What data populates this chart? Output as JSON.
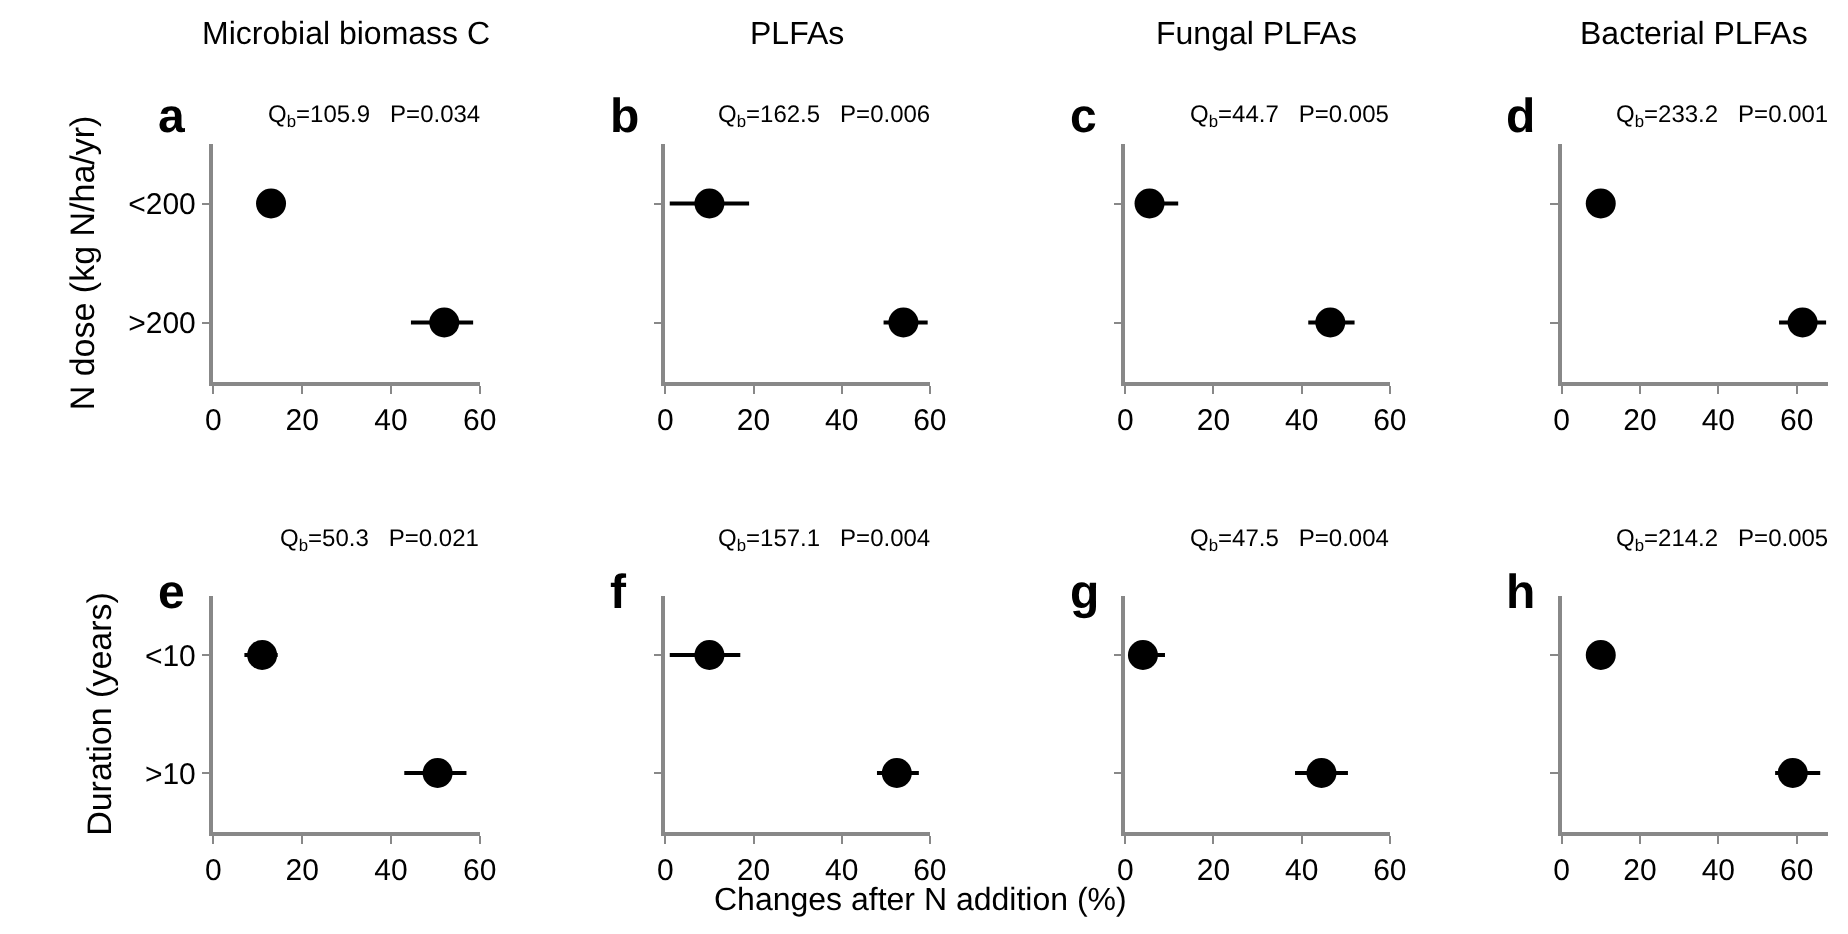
{
  "chart_data": [
    {
      "type": "scatter",
      "orientation": "horizontal",
      "title": "Microbial biomass C",
      "ylabel": "N dose (kg N/ha/yr)",
      "annotations": [
        "a",
        "Q$_{b}$=105.9   P=0.034"
      ],
      "categories": [
        "<200",
        ">200"
      ],
      "values": [
        13,
        52
      ],
      "errors": [
        null,
        [
          44.5,
          58.5
        ]
      ],
      "color": "#000000",
      "marker": "circle",
      "xlim": [
        0,
        60
      ],
      "xticks": [
        0,
        20,
        40,
        60
      ]
    },
    {
      "type": "scatter",
      "orientation": "horizontal",
      "title": "PLFAs",
      "annotations": [
        "b",
        "Q$_{b}$=162.5   P=0.006"
      ],
      "categories": [
        null,
        null
      ],
      "values": [
        10,
        54
      ],
      "errors": [
        [
          1,
          19
        ],
        [
          49.5,
          59.5
        ]
      ],
      "color": "#000000",
      "marker": "circle",
      "xlim": [
        0,
        60
      ],
      "xticks": [
        0,
        20,
        40,
        60
      ],
      "tick_labels": "x"
    },
    {
      "type": "scatter",
      "orientation": "horizontal",
      "title": "Fungal PLFAs",
      "annotations": [
        "c",
        "Q$_{b}$=44.7   P=0.005"
      ],
      "categories": [
        null,
        null
      ],
      "values": [
        5.5,
        46.5
      ],
      "errors": [
        [
          2.5,
          12
        ],
        [
          41.5,
          52
        ]
      ],
      "color": "#000000",
      "marker": "circle",
      "xlim": [
        0,
        60
      ],
      "xticks": [
        0,
        20,
        40,
        60
      ],
      "tick_labels": "x"
    },
    {
      "type": "scatter",
      "orientation": "horizontal",
      "title": "Bacterial PLFAs",
      "annotations": [
        "d",
        "Q$_{b}$=233.2   P=0.001"
      ],
      "categories": [
        null,
        null
      ],
      "values": [
        10,
        61.5
      ],
      "errors": [
        null,
        [
          55.5,
          67.5
        ]
      ],
      "color": "#000000",
      "marker": "circle",
      "xlim": [
        0,
        68
      ],
      "xticks": [
        0,
        20,
        40,
        60
      ],
      "tick_labels": "x"
    },
    {
      "type": "scatter",
      "orientation": "horizontal",
      "ylabel": "Duration (years)",
      "annotations": [
        "e",
        "Q$_{b}$=50.3   P=0.021"
      ],
      "categories": [
        "<10",
        ">10"
      ],
      "values": [
        11,
        50.5
      ],
      "errors": [
        [
          7,
          14.5
        ],
        [
          43,
          57
        ]
      ],
      "color": "#000000",
      "marker": "circle",
      "xlim": [
        0,
        60
      ],
      "xticks": [
        0,
        20,
        40,
        60
      ]
    },
    {
      "type": "scatter",
      "orientation": "horizontal",
      "xlabel": "Changes after N addition (%)",
      "annotations": [
        "f",
        "Q$_{b}$=157.1   P=0.004"
      ],
      "categories": [
        null,
        null
      ],
      "values": [
        10,
        52.5
      ],
      "errors": [
        [
          1,
          17
        ],
        [
          48,
          57.5
        ]
      ],
      "color": "#000000",
      "marker": "circle",
      "xlim": [
        0,
        60
      ],
      "xticks": [
        0,
        20,
        40,
        60
      ],
      "tick_labels": "x"
    },
    {
      "type": "scatter",
      "orientation": "horizontal",
      "annotations": [
        "g",
        "Q$_{b}$=47.5   P=0.004"
      ],
      "categories": [
        null,
        null
      ],
      "values": [
        4,
        44.5
      ],
      "errors": [
        [
          1,
          9
        ],
        [
          38.5,
          50.5
        ]
      ],
      "color": "#000000",
      "marker": "circle",
      "xlim": [
        0,
        60
      ],
      "xticks": [
        0,
        20,
        40,
        60
      ],
      "tick_labels": "x"
    },
    {
      "type": "scatter",
      "orientation": "horizontal",
      "annotations": [
        "h",
        "Q$_{b}$=214.2   P=0.005"
      ],
      "categories": [
        null,
        null
      ],
      "values": [
        10,
        59
      ],
      "errors": [
        null,
        [
          54.5,
          66
        ]
      ],
      "color": "#000000",
      "marker": "circle",
      "xlim": [
        0,
        68
      ],
      "xticks": [
        0,
        20,
        40,
        60
      ],
      "tick_labels": "x"
    }
  ]
}
